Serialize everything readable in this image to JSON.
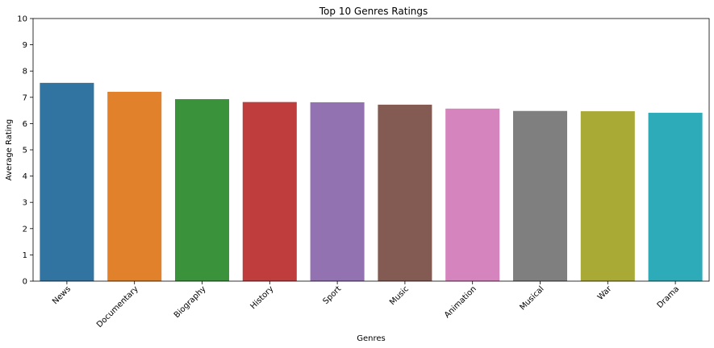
{
  "chart_data": {
    "type": "bar",
    "title": "Top 10 Genres Ratings",
    "xlabel": "Genres",
    "ylabel": "Average Rating",
    "ylim": [
      0,
      10
    ],
    "yticks": [
      0,
      1,
      2,
      3,
      4,
      5,
      6,
      7,
      8,
      9,
      10
    ],
    "grid": false,
    "legend": "none",
    "categories": [
      "News",
      "Documentary",
      "Biography",
      "History",
      "Sport",
      "Music",
      "Animation",
      "Musical",
      "War",
      "Drama"
    ],
    "values": [
      7.55,
      7.21,
      6.93,
      6.82,
      6.81,
      6.72,
      6.57,
      6.48,
      6.47,
      6.41
    ],
    "colors": [
      "#3274a1",
      "#e1812c",
      "#3a923a",
      "#c03d3e",
      "#9372b2",
      "#845b53",
      "#d684bd",
      "#7f7f7f",
      "#a9aa35",
      "#2eabb8"
    ]
  }
}
